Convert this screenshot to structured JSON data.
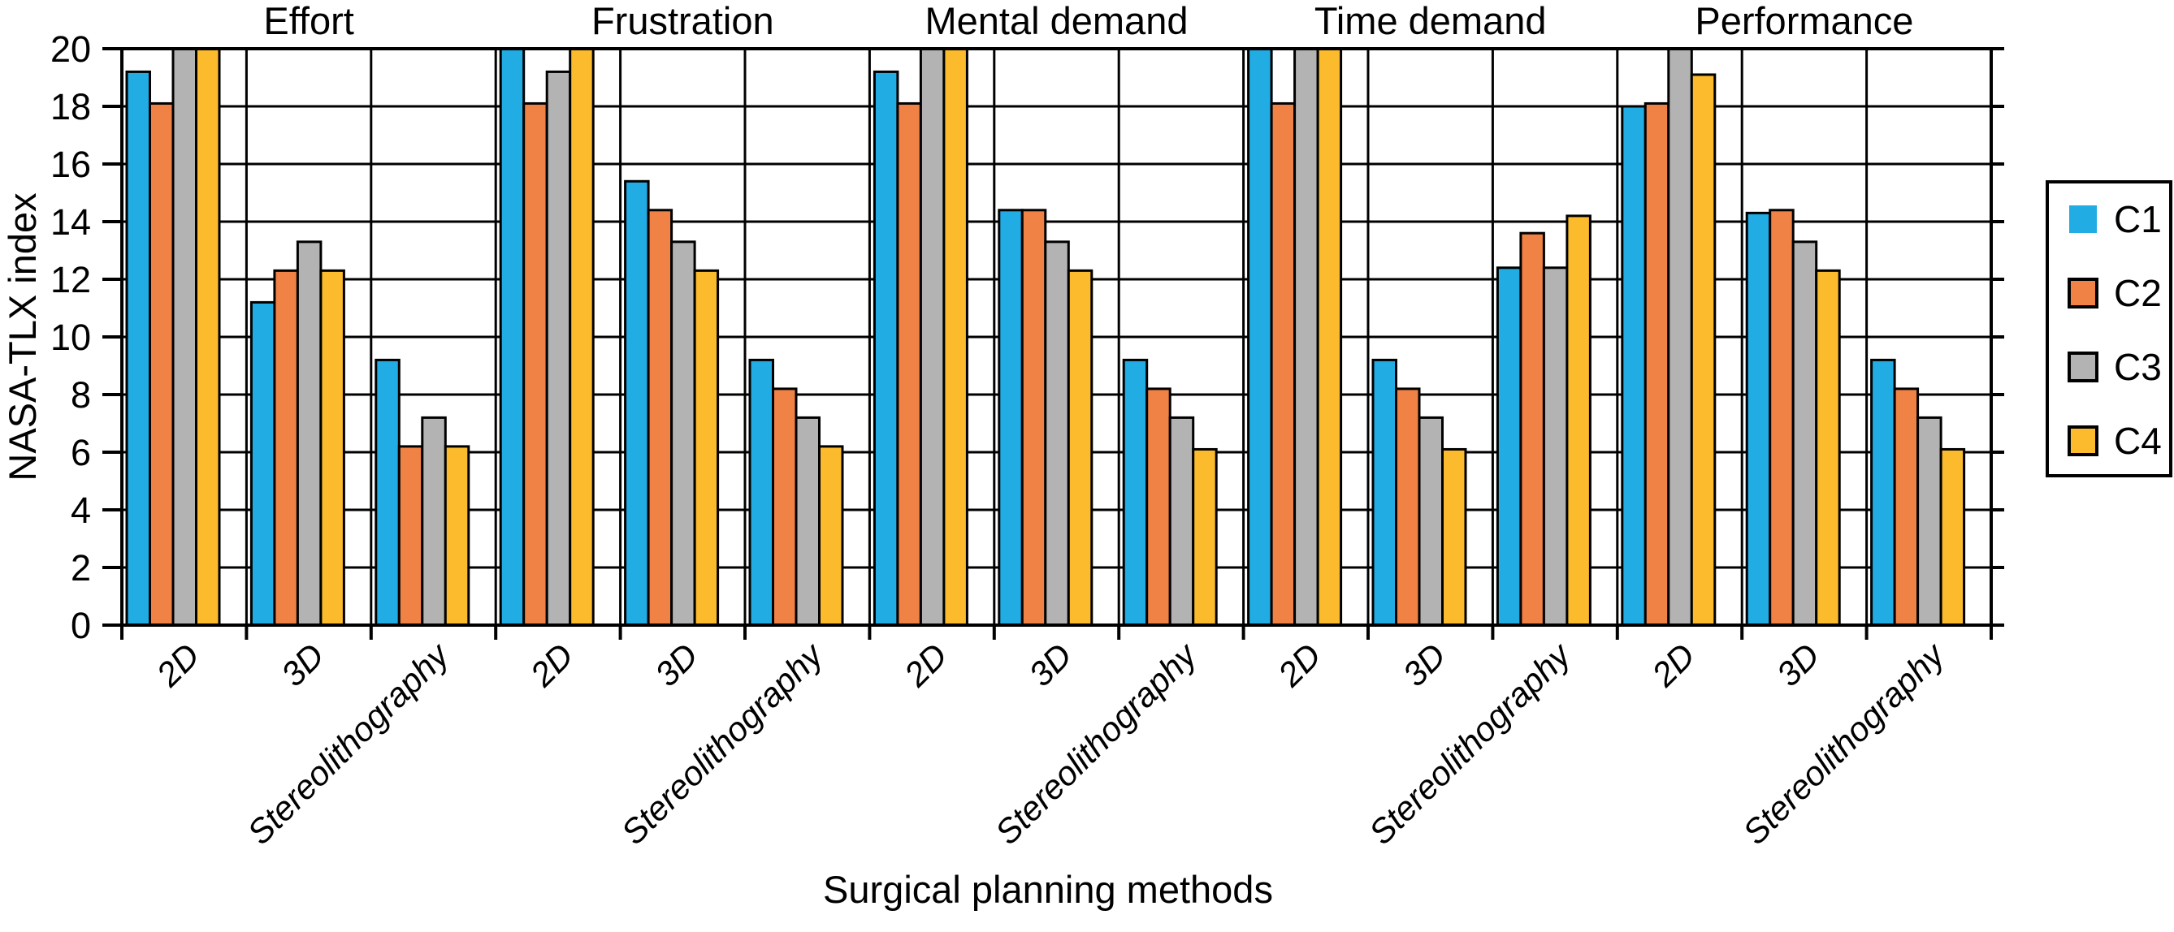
{
  "chart_data": {
    "type": "bar",
    "title": "",
    "xlabel": "Surgical planning methods",
    "ylabel": "NASA-TLX index",
    "ylim": [
      0,
      20
    ],
    "yticks": [
      0,
      2,
      4,
      6,
      8,
      10,
      12,
      14,
      16,
      18,
      20
    ],
    "grid": true,
    "legend_position": "right-outside",
    "categories": [
      "2D",
      "3D",
      "Stereolithography"
    ],
    "series": [
      {
        "name": "C1",
        "color": "#21ACE3"
      },
      {
        "name": "C2",
        "color": "#F18245"
      },
      {
        "name": "C3",
        "color": "#B3B3B3"
      },
      {
        "name": "C4",
        "color": "#FBBB2C"
      }
    ],
    "panels": [
      {
        "title": "Effort",
        "values": {
          "2D": [
            19.2,
            18.1,
            20,
            20
          ],
          "3D": [
            11.2,
            12.3,
            13.3,
            12.3
          ],
          "Stereolithography": [
            9.2,
            6.2,
            7.2,
            6.2
          ]
        }
      },
      {
        "title": "Frustration",
        "values": {
          "2D": [
            20,
            18.1,
            19.2,
            20
          ],
          "3D": [
            15.4,
            14.4,
            13.3,
            12.3
          ],
          "Stereolithography": [
            9.2,
            8.2,
            7.2,
            6.2
          ]
        }
      },
      {
        "title": "Mental demand",
        "values": {
          "2D": [
            19.2,
            18.1,
            20,
            20
          ],
          "3D": [
            14.4,
            14.4,
            13.3,
            12.3
          ],
          "Stereolithography": [
            9.2,
            8.2,
            7.2,
            6.1
          ]
        }
      },
      {
        "title": "Time demand",
        "values": {
          "2D": [
            20,
            18.1,
            20,
            20
          ],
          "3D": [
            9.2,
            8.2,
            7.2,
            6.1
          ],
          "Stereolithography": [
            12.4,
            13.6,
            12.4,
            14.2
          ]
        }
      },
      {
        "title": "Performance",
        "values": {
          "2D": [
            18,
            18.1,
            20,
            19.1
          ],
          "3D": [
            14.3,
            14.4,
            13.3,
            12.3
          ],
          "Stereolithography": [
            9.2,
            8.2,
            7.2,
            6.1
          ]
        }
      }
    ]
  }
}
